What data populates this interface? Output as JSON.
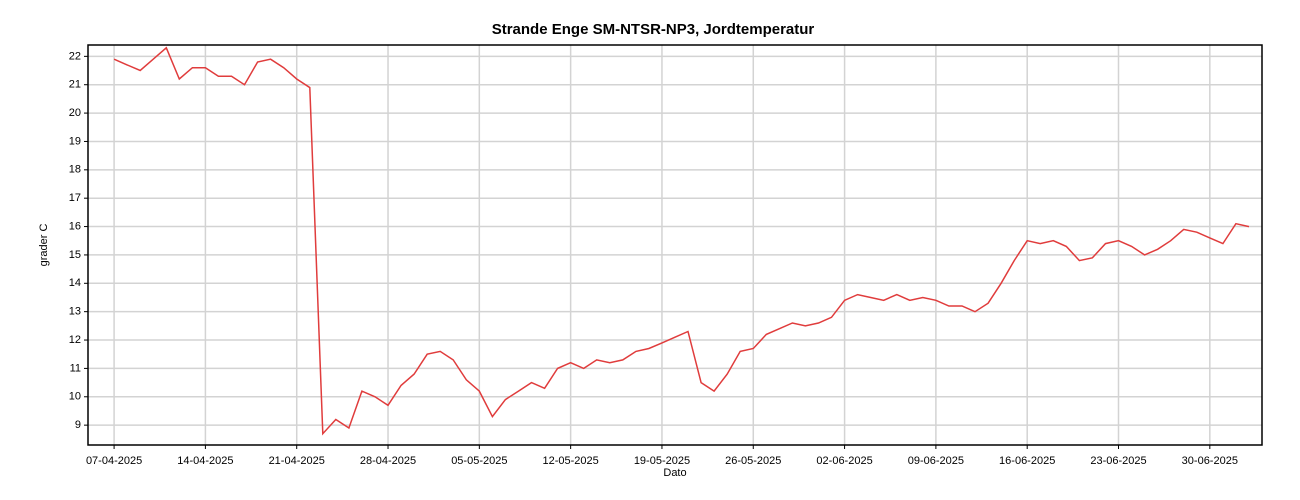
{
  "chart_data": {
    "type": "line",
    "title": "Strande Enge SM-NTSR-NP3, Jordtemperatur",
    "x_label": "Dato",
    "y_label": "grader C",
    "x": [
      "07-04-2025",
      "08-04-2025",
      "09-04-2025",
      "10-04-2025",
      "11-04-2025",
      "12-04-2025",
      "13-04-2025",
      "14-04-2025",
      "15-04-2025",
      "16-04-2025",
      "17-04-2025",
      "18-04-2025",
      "19-04-2025",
      "20-04-2025",
      "21-04-2025",
      "22-04-2025",
      "23-04-2025",
      "24-04-2025",
      "25-04-2025",
      "26-04-2025",
      "27-04-2025",
      "28-04-2025",
      "29-04-2025",
      "30-04-2025",
      "01-05-2025",
      "02-05-2025",
      "03-05-2025",
      "04-05-2025",
      "05-05-2025",
      "06-05-2025",
      "07-05-2025",
      "08-05-2025",
      "09-05-2025",
      "10-05-2025",
      "11-05-2025",
      "12-05-2025",
      "13-05-2025",
      "14-05-2025",
      "15-05-2025",
      "16-05-2025",
      "17-05-2025",
      "18-05-2025",
      "19-05-2025",
      "20-05-2025",
      "21-05-2025",
      "22-05-2025",
      "23-05-2025",
      "24-05-2025",
      "25-05-2025",
      "26-05-2025",
      "27-05-2025",
      "28-05-2025",
      "29-05-2025",
      "30-05-2025",
      "31-05-2025",
      "01-06-2025",
      "02-06-2025",
      "03-06-2025",
      "04-06-2025",
      "05-06-2025",
      "06-06-2025",
      "07-06-2025",
      "08-06-2025",
      "09-06-2025",
      "10-06-2025",
      "11-06-2025",
      "12-06-2025",
      "13-06-2025",
      "14-06-2025",
      "15-06-2025",
      "16-06-2025",
      "17-06-2025",
      "18-06-2025",
      "19-06-2025",
      "20-06-2025",
      "21-06-2025",
      "22-06-2025",
      "23-06-2025",
      "24-06-2025",
      "25-06-2025",
      "26-06-2025",
      "27-06-2025",
      "28-06-2025",
      "29-06-2025",
      "30-06-2025",
      "01-07-2025",
      "02-07-2025",
      "03-07-2025"
    ],
    "series": [
      {
        "name": "Jordtemperatur",
        "color": "#e03c3c",
        "values": [
          21.9,
          21.7,
          21.5,
          21.9,
          22.3,
          21.2,
          21.6,
          21.6,
          21.3,
          21.3,
          21.0,
          21.8,
          21.9,
          21.6,
          21.2,
          20.9,
          8.7,
          9.2,
          8.9,
          10.2,
          10.0,
          9.7,
          10.4,
          10.8,
          11.5,
          11.6,
          11.3,
          10.6,
          10.2,
          9.3,
          9.9,
          10.2,
          10.5,
          10.3,
          11.0,
          11.2,
          11.0,
          11.3,
          11.2,
          11.3,
          11.6,
          11.7,
          11.9,
          12.1,
          12.3,
          10.5,
          10.2,
          10.8,
          11.6,
          11.7,
          12.2,
          12.4,
          12.6,
          12.5,
          12.6,
          12.8,
          13.4,
          13.6,
          13.5,
          13.4,
          13.6,
          13.4,
          13.5,
          13.4,
          13.2,
          13.2,
          13.0,
          13.3,
          14.0,
          14.8,
          15.5,
          15.4,
          15.5,
          15.3,
          14.8,
          14.9,
          15.4,
          15.5,
          15.3,
          15.0,
          15.2,
          15.5,
          15.9,
          15.8,
          15.6,
          15.4,
          16.1,
          16.0
        ]
      }
    ],
    "xlim": [
      "05-04-2025",
      "04-07-2025"
    ],
    "xticks": [
      "07-04-2025",
      "14-04-2025",
      "21-04-2025",
      "28-04-2025",
      "05-05-2025",
      "12-05-2025",
      "19-05-2025",
      "26-05-2025",
      "02-06-2025",
      "09-06-2025",
      "16-06-2025",
      "23-06-2025",
      "30-06-2025"
    ],
    "ylim": [
      8.3,
      22.4
    ],
    "yticks": [
      9,
      10,
      11,
      12,
      13,
      14,
      15,
      16,
      17,
      18,
      19,
      20,
      21,
      22
    ],
    "grid": true
  }
}
